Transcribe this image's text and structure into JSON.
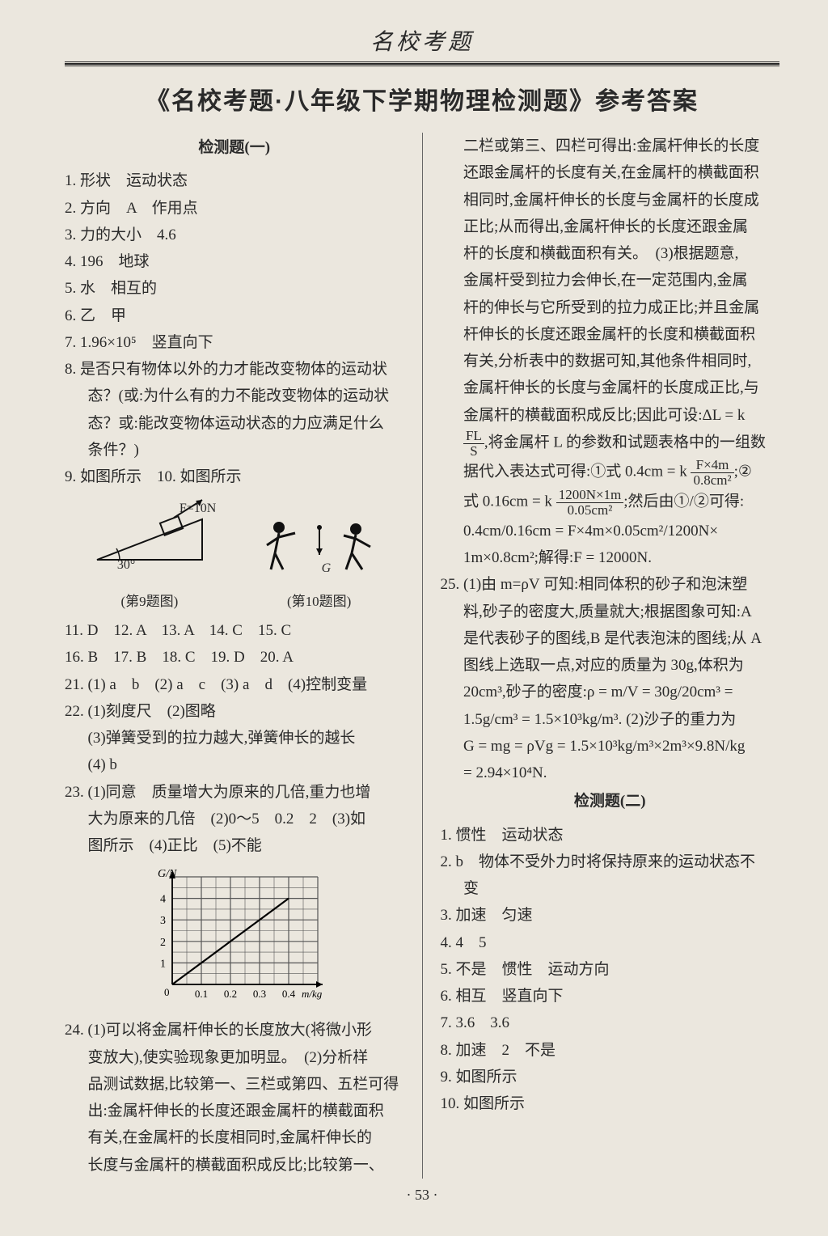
{
  "header": {
    "running": "名校考题",
    "title": "《名校考题·八年级下学期物理检测题》参考答案"
  },
  "footer": {
    "page": "· 53 ·"
  },
  "test1": {
    "heading": "检测题(一)",
    "q1": "1. 形状　运动状态",
    "q2": "2. 方向　A　作用点",
    "q3": "3. 力的大小　4.6",
    "q4": "4. 196　地球",
    "q5": "5. 水　相互的",
    "q6": "6. 乙　甲",
    "q7": "7. 1.96×10⁵　竖直向下",
    "q8a": "8. 是否只有物体以外的力才能改变物体的运动状",
    "q8b": "态？(或:为什么有的力不能改变物体的运动状",
    "q8c": "态？或:能改变物体运动状态的力应满足什么",
    "q8d": "条件？)",
    "q9": "9. 如图所示　10. 如图所示",
    "fig9": {
      "force": "F=10N",
      "angle": "30°",
      "cap": "(第9题图)"
    },
    "fig10": {
      "g": "G",
      "cap": "(第10题图)"
    },
    "mc1": "11. D　12. A　13. A　14. C　15. C",
    "mc2": "16. B　17. B　18. C　19. D　20. A",
    "q21": "21. (1) a　b　(2) a　c　(3) a　d　(4)控制变量",
    "q22a": "22. (1)刻度尺　(2)图略",
    "q22b": "(3)弹簧受到的拉力越大,弹簧伸长的越长",
    "q22c": "(4) b",
    "q23a": "23. (1)同意　质量增大为原来的几倍,重力也增",
    "q23b": "大为原来的几倍　(2)0～5　0.2　2　(3)如",
    "q23c": "图所示　(4)正比　(5)不能",
    "chart": {
      "ylabel": "G/N",
      "xlabel": "m/kg",
      "yticks": [
        "1",
        "2",
        "3",
        "4"
      ],
      "xticks": [
        "0.1",
        "0.2",
        "0.3",
        "0.4"
      ],
      "xlim": [
        0,
        0.5
      ],
      "ylim": [
        0,
        5
      ],
      "grid_color": "#555",
      "line_color": "#000",
      "bg": "#ebe7de",
      "series": {
        "x": [
          0,
          0.1,
          0.2,
          0.3,
          0.4
        ],
        "y": [
          0,
          1,
          2,
          3,
          4
        ]
      }
    },
    "q24a": "24. (1)可以将金属杆伸长的长度放大(将微小形",
    "q24b": "变放大),使实验现象更加明显。　(2)分析样",
    "q24c": "品测试数据,比较第一、三栏或第四、五栏可得",
    "q24d": "出:金属杆伸长的长度还跟金属杆的横截面积",
    "q24e": "有关,在金属杆的长度相同时,金属杆伸长的",
    "q24f": "长度与金属杆的横截面积成反比;比较第一、"
  },
  "rcol": {
    "p1a": "二栏或第三、四栏可得出:金属杆伸长的长度",
    "p1b": "还跟金属杆的长度有关,在金属杆的横截面积",
    "p1c": "相同时,金属杆伸长的长度与金属杆的长度成",
    "p1d": "正比;从而得出,金属杆伸长的长度还跟金属",
    "p1e": "杆的长度和横截面积有关。　(3)根据题意,",
    "p1f": "金属杆受到拉力会伸长,在一定范围内,金属",
    "p1g": "杆的伸长与它所受到的拉力成正比;并且金属",
    "p1h": "杆伸长的长度还跟金属杆的长度和横截面积",
    "p1i": "有关,分析表中的数据可知,其他条件相同时,",
    "p1j": "金属杆伸长的长度与金属杆的长度成正比,与",
    "p1k": "金属杆的横截面积成反比;因此可设:ΔL = k",
    "p1l_pre": "",
    "p1l_fracN": "FL",
    "p1l_fracD": "S",
    "p1l_post": ",将金属杆 L 的参数和试题表格中的一组数",
    "p1m_pre": "据代入表达式可得:①式 0.4cm = k ",
    "p1m_fracN": "F×4m",
    "p1m_fracD": "0.8cm²",
    "p1m_post": ";②",
    "p1n_pre": "式 0.16cm = k ",
    "p1n_fracN": "1200N×1m",
    "p1n_fracD": "0.05cm²",
    "p1n_post": ";然后由①/②可得:",
    "p1o": "0.4cm/0.16cm = F×4m×0.05cm²/1200N×",
    "p1p": "1m×0.8cm²;解得:F = 12000N.",
    "q25a": "25. (1)由 m=ρV 可知:相同体积的砂子和泡沫塑",
    "q25b": "料,砂子的密度大,质量就大;根据图象可知:A",
    "q25c": "是代表砂子的图线,B 是代表泡沫的图线;从 A",
    "q25d": "图线上选取一点,对应的质量为 30g,体积为",
    "q25e": "20cm³,砂子的密度:ρ = m/V = 30g/20cm³ =",
    "q25f": "1.5g/cm³ = 1.5×10³kg/m³. (2)沙子的重力为",
    "q25g": "G = mg = ρVg = 1.5×10³kg/m³×2m³×9.8N/kg",
    "q25h": "= 2.94×10⁴N.",
    "t2head": "检测题(二)",
    "t2q1": "1. 惯性　运动状态",
    "t2q2a": "2. b　物体不受外力时将保持原来的运动状态不",
    "t2q2b": "变",
    "t2q3": "3. 加速　匀速",
    "t2q4": "4. 4　5",
    "t2q5": "5. 不是　惯性　运动方向",
    "t2q6": "6. 相互　竖直向下",
    "t2q7": "7. 3.6　3.6",
    "t2q8": "8. 加速　2　不是",
    "t2q9": "9. 如图所示",
    "t2q10": "10. 如图所示"
  }
}
